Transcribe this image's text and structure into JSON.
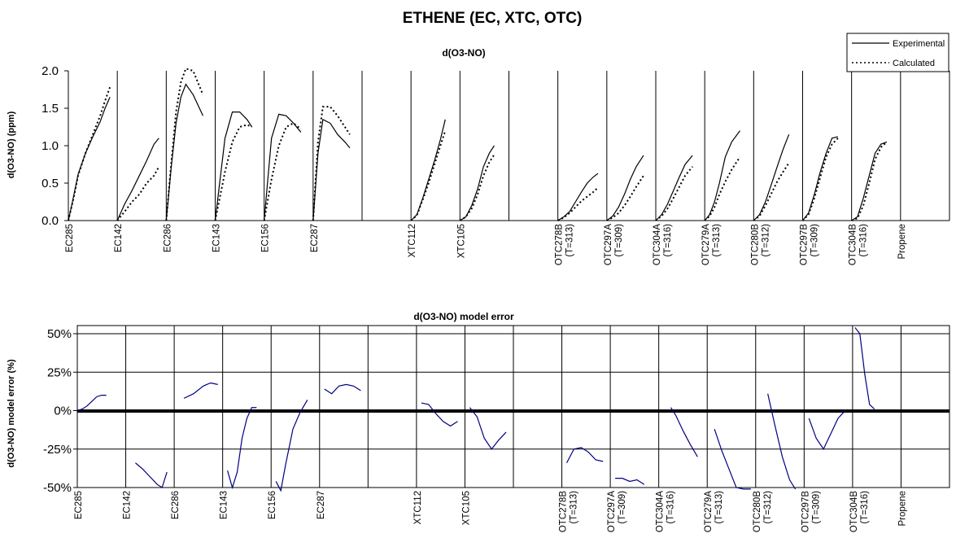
{
  "figure_title": "ETHENE (EC, XTC, OTC)",
  "run_labels": [
    [
      "EC285"
    ],
    [
      "EC142"
    ],
    [
      "EC286"
    ],
    [
      "EC143"
    ],
    [
      "EC156"
    ],
    [
      "EC287"
    ],
    [
      ""
    ],
    [
      "XTC112"
    ],
    [
      "XTC105"
    ],
    [
      ""
    ],
    [
      "OTC278B",
      "(T=313)"
    ],
    [
      "OTC297A",
      "(T=309)"
    ],
    [
      "OTC304A",
      "(T=316)"
    ],
    [
      "OTC279A",
      "(T=313)"
    ],
    [
      "OTC280B",
      "(T=312)"
    ],
    [
      "OTC297B",
      "(T=309)"
    ],
    [
      "OTC304B",
      "(T=316)"
    ],
    [
      "Propene"
    ]
  ],
  "legend": {
    "experimental": "Experimental",
    "calculated": "Calculated"
  },
  "colors": {
    "error_line": "#000080",
    "frame": "#000000"
  },
  "chart_data": [
    {
      "type": "line",
      "title": "d(O3-NO)",
      "xlabel": "",
      "ylabel": "d(O3-NO) (ppm)",
      "ylim": [
        0,
        2
      ],
      "ytick_labels": [
        "0.0",
        "0.5",
        "1.0",
        "1.5",
        "2.0"
      ],
      "legend_position": "top-right",
      "grid": false,
      "runs": [
        {
          "run": "EC285",
          "x": [
            0,
            0.1,
            0.2,
            0.35,
            0.5,
            0.65,
            0.75,
            0.85
          ],
          "experimental": [
            0,
            0.3,
            0.62,
            0.9,
            1.12,
            1.32,
            1.5,
            1.65
          ],
          "calculated": [
            0,
            0.28,
            0.6,
            0.9,
            1.15,
            1.4,
            1.6,
            1.78
          ]
        },
        {
          "run": "EC142",
          "x": [
            0,
            0.15,
            0.3,
            0.45,
            0.6,
            0.75,
            0.85
          ],
          "experimental": [
            0,
            0.22,
            0.4,
            0.6,
            0.8,
            1.02,
            1.1
          ],
          "calculated": [
            0,
            0.12,
            0.25,
            0.35,
            0.5,
            0.6,
            0.72
          ]
        },
        {
          "run": "EC286",
          "x": [
            0,
            0.1,
            0.2,
            0.3,
            0.4,
            0.55,
            0.75
          ],
          "experimental": [
            0,
            0.7,
            1.3,
            1.65,
            1.82,
            1.68,
            1.4
          ],
          "calculated": [
            0,
            0.75,
            1.45,
            1.85,
            2.03,
            2.0,
            1.68
          ]
        },
        {
          "run": "EC143",
          "x": [
            0,
            0.2,
            0.35,
            0.5,
            0.65,
            0.75
          ],
          "experimental": [
            0,
            1.1,
            1.45,
            1.45,
            1.35,
            1.25
          ],
          "calculated": [
            0,
            0.65,
            1.05,
            1.25,
            1.28,
            1.25
          ]
        },
        {
          "run": "EC156",
          "x": [
            0,
            0.15,
            0.3,
            0.45,
            0.6,
            0.75
          ],
          "experimental": [
            0,
            1.1,
            1.42,
            1.4,
            1.3,
            1.18
          ],
          "calculated": [
            0,
            0.55,
            1.0,
            1.25,
            1.3,
            1.22
          ]
        },
        {
          "run": "EC287",
          "x": [
            0,
            0.1,
            0.2,
            0.35,
            0.5,
            0.65,
            0.75
          ],
          "experimental": [
            0,
            0.9,
            1.35,
            1.3,
            1.15,
            1.05,
            0.97
          ],
          "calculated": [
            0,
            1.05,
            1.52,
            1.52,
            1.4,
            1.25,
            1.15
          ]
        },
        {
          "run": "",
          "x": [],
          "experimental": [],
          "calculated": []
        },
        {
          "run": "XTC112",
          "x": [
            0,
            0.12,
            0.24,
            0.36,
            0.48,
            0.6,
            0.7
          ],
          "experimental": [
            0,
            0.08,
            0.3,
            0.55,
            0.8,
            1.08,
            1.35
          ],
          "calculated": [
            0,
            0.07,
            0.28,
            0.5,
            0.75,
            1.0,
            1.2
          ]
        },
        {
          "run": "XTC105",
          "x": [
            0,
            0.12,
            0.24,
            0.36,
            0.48,
            0.6,
            0.7
          ],
          "experimental": [
            0,
            0.05,
            0.2,
            0.42,
            0.72,
            0.9,
            1.0
          ],
          "calculated": [
            0,
            0.05,
            0.16,
            0.35,
            0.6,
            0.78,
            0.88
          ]
        },
        {
          "run": "",
          "x": [],
          "experimental": [],
          "calculated": []
        },
        {
          "run": "OTC278B (T=313)",
          "x": [
            0,
            0.12,
            0.24,
            0.36,
            0.48,
            0.6,
            0.72,
            0.82
          ],
          "experimental": [
            0,
            0.05,
            0.12,
            0.25,
            0.38,
            0.5,
            0.58,
            0.63
          ],
          "calculated": [
            0,
            0.04,
            0.1,
            0.18,
            0.26,
            0.32,
            0.38,
            0.44
          ]
        },
        {
          "run": "OTC297A (T=309)",
          "x": [
            0,
            0.12,
            0.24,
            0.36,
            0.48,
            0.6,
            0.75
          ],
          "experimental": [
            0,
            0.06,
            0.18,
            0.35,
            0.55,
            0.72,
            0.87
          ],
          "calculated": [
            0,
            0.04,
            0.1,
            0.2,
            0.32,
            0.45,
            0.6
          ]
        },
        {
          "run": "OTC304A (T=316)",
          "x": [
            0,
            0.12,
            0.24,
            0.36,
            0.48,
            0.6,
            0.75
          ],
          "experimental": [
            0,
            0.08,
            0.22,
            0.4,
            0.58,
            0.75,
            0.87
          ],
          "calculated": [
            0,
            0.06,
            0.16,
            0.3,
            0.45,
            0.6,
            0.72
          ]
        },
        {
          "run": "OTC279A (T=313)",
          "x": [
            0,
            0.1,
            0.2,
            0.3,
            0.42,
            0.55,
            0.72
          ],
          "experimental": [
            0,
            0.08,
            0.25,
            0.5,
            0.85,
            1.05,
            1.2
          ],
          "calculated": [
            0,
            0.06,
            0.18,
            0.35,
            0.52,
            0.68,
            0.85
          ]
        },
        {
          "run": "OTC280B (T=312)",
          "x": [
            0,
            0.12,
            0.24,
            0.36,
            0.48,
            0.6,
            0.72
          ],
          "experimental": [
            0,
            0.08,
            0.25,
            0.48,
            0.72,
            0.95,
            1.15
          ],
          "calculated": [
            0,
            0.06,
            0.2,
            0.36,
            0.52,
            0.65,
            0.77
          ]
        },
        {
          "run": "OTC297B (T=309)",
          "x": [
            0,
            0.12,
            0.24,
            0.36,
            0.48,
            0.6,
            0.72
          ],
          "experimental": [
            0,
            0.1,
            0.35,
            0.65,
            0.9,
            1.1,
            1.12
          ],
          "calculated": [
            0,
            0.08,
            0.3,
            0.58,
            0.85,
            1.02,
            1.1
          ]
        },
        {
          "run": "OTC304B (T=316)",
          "x": [
            0,
            0.12,
            0.24,
            0.36,
            0.48,
            0.6,
            0.72
          ],
          "experimental": [
            0,
            0.05,
            0.3,
            0.6,
            0.9,
            1.02,
            1.05
          ],
          "calculated": [
            0,
            0.03,
            0.2,
            0.5,
            0.82,
            0.98,
            1.05
          ]
        },
        {
          "run": "Propene",
          "x": [],
          "experimental": [],
          "calculated": []
        }
      ]
    },
    {
      "type": "line",
      "title": "d(O3-NO) model error",
      "xlabel": "",
      "ylabel": "d(O3-NO) model error (%)",
      "ylim": [
        -50,
        50
      ],
      "ytick_labels": [
        "-50%",
        "-25%",
        "0%",
        "25%",
        "50%"
      ],
      "grid": false,
      "runs": [
        {
          "run": "EC285",
          "x": [
            0,
            0.1,
            0.2,
            0.3,
            0.4,
            0.5,
            0.6
          ],
          "values": [
            0,
            1,
            3,
            6,
            9,
            10,
            10
          ]
        },
        {
          "run": "EC142",
          "x": [
            0.2,
            0.35,
            0.5,
            0.65,
            0.75,
            0.85
          ],
          "values": [
            -34,
            -38,
            -43,
            -48,
            -50,
            -40
          ]
        },
        {
          "run": "EC286",
          "x": [
            0.2,
            0.4,
            0.6,
            0.75,
            0.9
          ],
          "values": [
            8,
            11,
            16,
            18,
            17
          ]
        },
        {
          "run": "EC143",
          "x": [
            0.1,
            0.2,
            0.3,
            0.4,
            0.5,
            0.6,
            0.7
          ],
          "values": [
            -39,
            -50,
            -40,
            -18,
            -5,
            2,
            2
          ]
        },
        {
          "run": "EC156",
          "x": [
            0.1,
            0.2,
            0.3,
            0.45,
            0.6,
            0.75
          ],
          "values": [
            -46,
            -52,
            -35,
            -12,
            -1,
            7
          ]
        },
        {
          "run": "EC287",
          "x": [
            0.1,
            0.25,
            0.4,
            0.55,
            0.7,
            0.85
          ],
          "values": [
            14,
            11,
            16,
            17,
            16,
            13
          ]
        },
        {
          "run": "",
          "x": [],
          "values": []
        },
        {
          "run": "XTC112",
          "x": [
            0.1,
            0.25,
            0.4,
            0.55,
            0.7,
            0.85
          ],
          "values": [
            5,
            4,
            -2,
            -7,
            -10,
            -7
          ]
        },
        {
          "run": "XTC105",
          "x": [
            0.1,
            0.25,
            0.4,
            0.55,
            0.7,
            0.85
          ],
          "values": [
            2,
            -4,
            -18,
            -25,
            -19,
            -14
          ]
        },
        {
          "run": "",
          "x": [],
          "values": []
        },
        {
          "run": "OTC278B (T=313)",
          "x": [
            0.1,
            0.25,
            0.4,
            0.55,
            0.7,
            0.85
          ],
          "values": [
            -34,
            -25,
            -24,
            -27,
            -32,
            -33
          ]
        },
        {
          "run": "OTC297A (T=309)",
          "x": [
            0.1,
            0.25,
            0.4,
            0.55,
            0.7
          ],
          "values": [
            -44,
            -44,
            -46,
            -45,
            -48
          ]
        },
        {
          "run": "OTC304A (T=316)",
          "x": [
            0.25,
            0.35,
            0.5,
            0.65,
            0.8
          ],
          "values": [
            2,
            -3,
            -13,
            -22,
            -30
          ]
        },
        {
          "run": "OTC279A (T=313)",
          "x": [
            0.15,
            0.3,
            0.45,
            0.6,
            0.75,
            0.9
          ],
          "values": [
            -12,
            -26,
            -38,
            -50,
            -51,
            -51
          ]
        },
        {
          "run": "OTC280B (T=312)",
          "x": [
            0.25,
            0.4,
            0.55,
            0.7,
            0.82
          ],
          "values": [
            11,
            -10,
            -30,
            -45,
            -51
          ]
        },
        {
          "run": "OTC297B (T=309)",
          "x": [
            0.1,
            0.25,
            0.4,
            0.55,
            0.7,
            0.85
          ],
          "values": [
            -5,
            -18,
            -25,
            -15,
            -5,
            0
          ]
        },
        {
          "run": "OTC304B (T=316)",
          "x": [
            0.05,
            0.15,
            0.25,
            0.35,
            0.45
          ],
          "values": [
            54,
            50,
            24,
            4,
            1
          ]
        },
        {
          "run": "Propene",
          "x": [],
          "values": []
        }
      ]
    }
  ]
}
